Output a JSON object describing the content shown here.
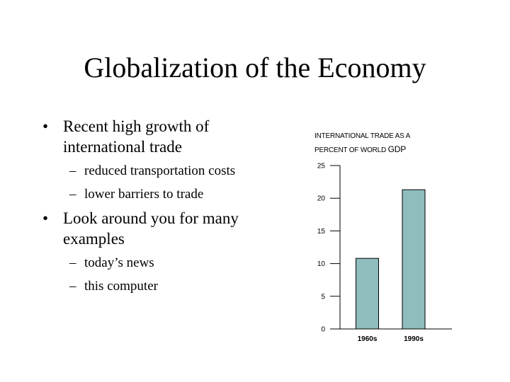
{
  "slide": {
    "title": "Globalization of the Economy",
    "bullets": [
      {
        "text": "Recent high growth of international trade",
        "sub": [
          "reduced transportation costs",
          "lower barriers to trade"
        ]
      },
      {
        "text": "Look around you for many examples",
        "sub": [
          "today’s news",
          "this computer"
        ]
      }
    ],
    "bullet_mark": "•",
    "sub_mark": "–"
  },
  "chart_title": {
    "line1": "INTERNATIONAL TRADE AS A",
    "line2_prefix": "PERCENT OF WORLD",
    "line2_suffix": "GDP"
  },
  "chart_data": {
    "type": "bar",
    "title": "INTERNATIONAL TRADE AS A PERCENT OF WORLD GDP",
    "categories": [
      "1960s",
      "1990s"
    ],
    "values": [
      10.8,
      21.3
    ],
    "ylim": [
      0,
      25
    ],
    "yticks": [
      0,
      5,
      10,
      15,
      20,
      25
    ],
    "xlabel": "",
    "ylabel": "",
    "bar_color": "#8fbcbc",
    "grid": false
  }
}
